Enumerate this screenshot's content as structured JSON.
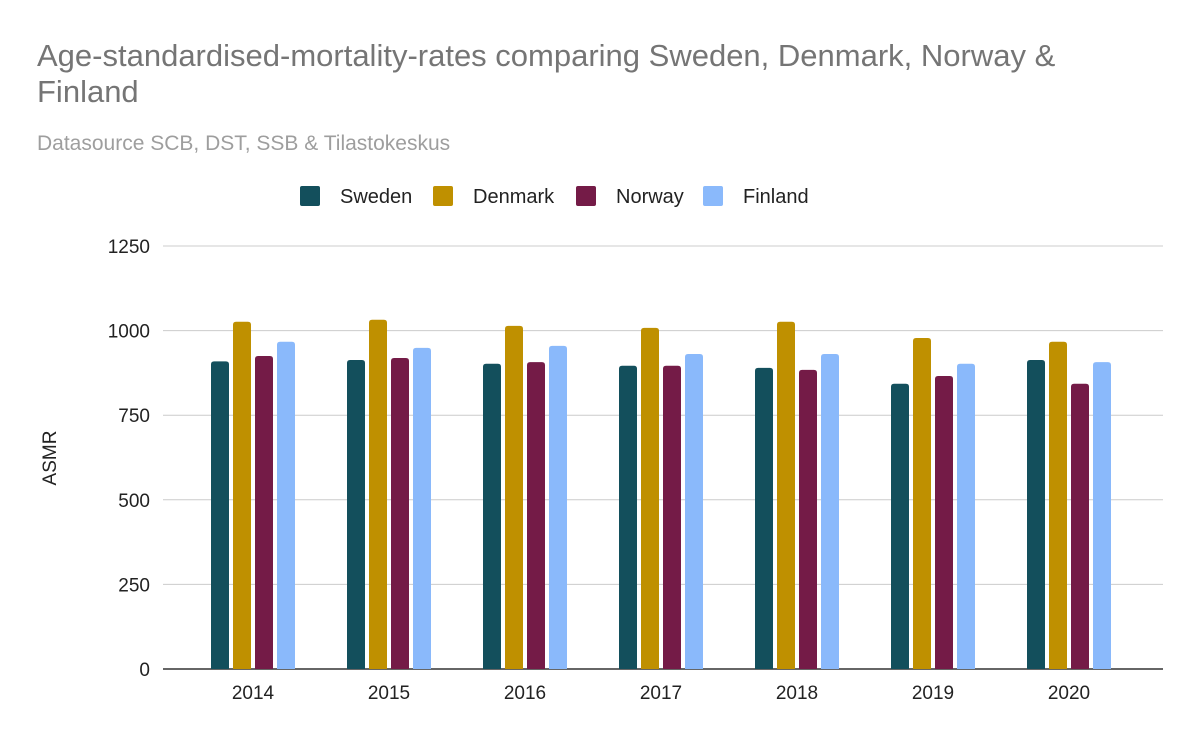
{
  "chart_data": {
    "type": "bar",
    "title": "Age-standardised-mortality-rates comparing Sweden, Denmark, Norway & Finland",
    "subtitle": "Datasource SCB, DST, SSB & Tilastokeskus",
    "xlabel": "",
    "ylabel": "ASMR",
    "ylim": [
      0,
      1250
    ],
    "yticks": [
      0,
      250,
      500,
      750,
      1000,
      1250
    ],
    "grid": true,
    "legend_position": "top",
    "categories": [
      "2014",
      "2015",
      "2016",
      "2017",
      "2018",
      "2019",
      "2020"
    ],
    "series": [
      {
        "name": "Sweden",
        "color": "#134f5c",
        "values": [
          909,
          913,
          902,
          896,
          890,
          843,
          913
        ]
      },
      {
        "name": "Denmark",
        "color": "#bf9000",
        "values": [
          1026,
          1032,
          1014,
          1008,
          1026,
          978,
          967
        ]
      },
      {
        "name": "Norway",
        "color": "#741b47",
        "values": [
          925,
          919,
          907,
          896,
          884,
          866,
          843
        ]
      },
      {
        "name": "Finland",
        "color": "#8ab9fb",
        "values": [
          967,
          949,
          955,
          931,
          931,
          902,
          907
        ]
      }
    ]
  }
}
